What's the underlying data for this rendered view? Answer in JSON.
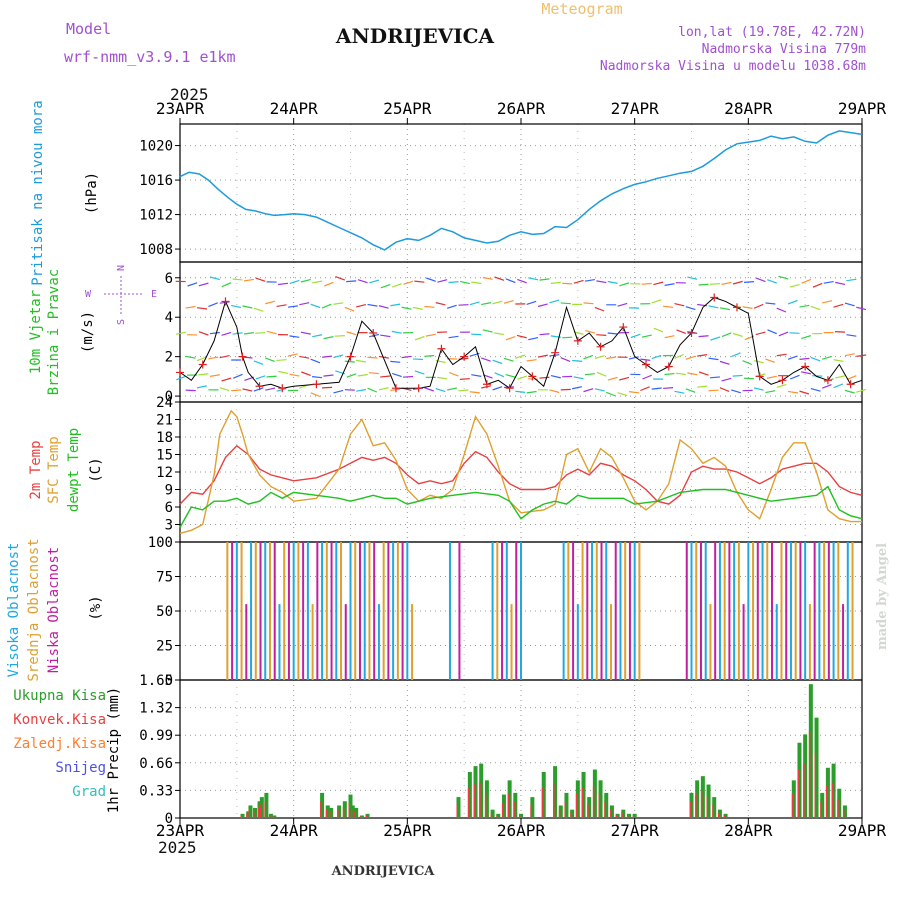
{
  "header": {
    "model_label": "Model",
    "model_name": "wrf-nmm_v3.9.1 e1km",
    "station": "ANDRIJEVICA",
    "chart_title": "Meteogram",
    "coords": "lon,lat (19.78E, 42.72N)",
    "elevation": "Nadmorska Visina 779m",
    "model_elevation": "Nadmorska Visina u modelu 1038.68m",
    "year": "2025",
    "footer": "ANDRIJEVICA",
    "watermark": "made by Angel"
  },
  "colors": {
    "pressure": "#1e9bdc",
    "wind_text": "#22c022",
    "temp2m": "#e84040",
    "sfc": "#e0a030",
    "dewpt": "#20c020",
    "cloud_high": "#20a8e0",
    "cloud_mid": "#e0a030",
    "cloud_low": "#c020a0",
    "accent_purple": "#a050d0",
    "precip_total": "#2a9d2a",
    "precip_conv": "#e84040",
    "precip_frozen": "#ff8030",
    "precip_snow": "#5050e0",
    "precip_graupel": "#30c0c0",
    "wind_marker": "#e02020"
  },
  "chart_data": {
    "type": "meteogram",
    "x_ticks": [
      "23APR",
      "24APR",
      "25APR",
      "26APR",
      "27APR",
      "28APR",
      "29APR"
    ],
    "panels": [
      {
        "id": "pressure",
        "type": "line",
        "ylabel_lines": [
          "Pritisak na nivou mora"
        ],
        "unit": "(hPa)",
        "ylim": [
          1006.5,
          1022.5
        ],
        "y_ticks": [
          1008,
          1012,
          1016,
          1020
        ],
        "series": [
          {
            "color_key": "pressure",
            "x": [
              0,
              0.08,
              0.17,
              0.25,
              0.33,
              0.42,
              0.5,
              0.58,
              0.67,
              0.75,
              0.83,
              0.92,
              1.0,
              1.1,
              1.2,
              1.3,
              1.4,
              1.5,
              1.6,
              1.7,
              1.8,
              1.9,
              2.0,
              2.1,
              2.2,
              2.3,
              2.4,
              2.5,
              2.6,
              2.7,
              2.8,
              2.9,
              3.0,
              3.1,
              3.2,
              3.3,
              3.4,
              3.5,
              3.6,
              3.7,
              3.8,
              3.9,
              4.0,
              4.1,
              4.2,
              4.3,
              4.4,
              4.5,
              4.6,
              4.7,
              4.8,
              4.9,
              5.0,
              5.1,
              5.2,
              5.3,
              5.4,
              5.5,
              5.6,
              5.7,
              5.8,
              5.9,
              6.0
            ],
            "values": [
              1016.4,
              1016.9,
              1016.7,
              1016.0,
              1015.0,
              1014.0,
              1013.2,
              1012.6,
              1012.4,
              1012.1,
              1011.9,
              1012.0,
              1012.1,
              1012.0,
              1011.7,
              1011.1,
              1010.5,
              1009.9,
              1009.3,
              1008.5,
              1007.9,
              1008.8,
              1009.2,
              1009.0,
              1009.6,
              1010.4,
              1010.0,
              1009.3,
              1009.0,
              1008.7,
              1008.9,
              1009.6,
              1010.0,
              1009.7,
              1009.8,
              1010.6,
              1010.5,
              1011.4,
              1012.6,
              1013.6,
              1014.4,
              1015.0,
              1015.5,
              1015.8,
              1016.2,
              1016.5,
              1016.8,
              1017.0,
              1017.6,
              1018.5,
              1019.5,
              1020.2,
              1020.4,
              1020.6,
              1021.1,
              1020.8,
              1021.0,
              1020.5,
              1020.3,
              1021.2,
              1021.7,
              1021.5,
              1021.3
            ]
          }
        ]
      },
      {
        "id": "wind",
        "type": "line",
        "ylabel_lines": [
          "10m Vjetar",
          "Brzina i Pravac"
        ],
        "unit": "(m/s)",
        "compass": [
          "N",
          "W",
          "E",
          "S"
        ],
        "ylim": [
          -0.3,
          6.8
        ],
        "y_ticks": [
          0,
          2,
          4,
          6
        ],
        "series": [
          {
            "color_key": "wind_speed",
            "x": [
              0,
              0.1,
              0.2,
              0.3,
              0.4,
              0.5,
              0.55,
              0.6,
              0.7,
              0.8,
              0.9,
              1.0,
              1.2,
              1.4,
              1.5,
              1.6,
              1.7,
              1.8,
              1.9,
              2.0,
              2.1,
              2.2,
              2.3,
              2.4,
              2.5,
              2.6,
              2.7,
              2.8,
              2.9,
              3.0,
              3.1,
              3.2,
              3.3,
              3.4,
              3.5,
              3.6,
              3.7,
              3.8,
              3.9,
              4.0,
              4.1,
              4.2,
              4.3,
              4.4,
              4.5,
              4.6,
              4.7,
              4.8,
              4.9,
              5.0,
              5.1,
              5.2,
              5.3,
              5.4,
              5.5,
              5.6,
              5.7,
              5.8,
              5.9,
              6.0
            ],
            "values": [
              1.2,
              0.8,
              1.6,
              2.8,
              4.8,
              3.5,
              2.0,
              1.2,
              0.5,
              0.6,
              0.4,
              0.5,
              0.6,
              0.7,
              2.0,
              3.8,
              3.2,
              1.8,
              0.4,
              0.4,
              0.4,
              0.5,
              2.4,
              1.6,
              2.0,
              2.5,
              0.6,
              0.8,
              0.4,
              1.5,
              1.0,
              0.5,
              2.2,
              4.5,
              2.8,
              3.2,
              2.5,
              2.8,
              3.5,
              2.0,
              1.6,
              1.2,
              1.5,
              2.6,
              3.2,
              4.5,
              5.0,
              4.8,
              4.5,
              4.2,
              1.0,
              0.6,
              0.8,
              1.2,
              1.5,
              1.0,
              0.8,
              1.6,
              0.6,
              0.8
            ]
          }
        ]
      },
      {
        "id": "temp",
        "type": "line",
        "ylabel_lines": [
          "2m Temp",
          "SFC Temp",
          "dewpt Temp"
        ],
        "unit": "(C)",
        "ylim": [
          0,
          24
        ],
        "y_ticks": [
          3,
          6,
          9,
          12,
          15,
          18,
          21,
          24
        ],
        "series": [
          {
            "name": "2m Temp",
            "color_key": "temp2m",
            "x": [
              0,
              0.1,
              0.2,
              0.3,
              0.4,
              0.5,
              0.6,
              0.7,
              0.8,
              0.9,
              1.0,
              1.2,
              1.4,
              1.5,
              1.6,
              1.7,
              1.8,
              1.9,
              2.0,
              2.1,
              2.2,
              2.3,
              2.4,
              2.5,
              2.6,
              2.7,
              2.8,
              2.9,
              3.0,
              3.2,
              3.3,
              3.4,
              3.5,
              3.6,
              3.7,
              3.8,
              3.9,
              4.0,
              4.1,
              4.2,
              4.3,
              4.4,
              4.5,
              4.6,
              4.7,
              4.8,
              4.9,
              5.0,
              5.1,
              5.2,
              5.3,
              5.4,
              5.5,
              5.6,
              5.7,
              5.8,
              5.9,
              6.0
            ],
            "values": [
              6.5,
              8.5,
              8.2,
              10.5,
              14.5,
              16.5,
              15.0,
              12.5,
              11.5,
              11.0,
              10.5,
              11.0,
              12.5,
              13.5,
              14.5,
              14.0,
              14.5,
              13.5,
              11.5,
              10.0,
              10.5,
              10.0,
              10.5,
              13.5,
              15.5,
              14.5,
              12.0,
              10.0,
              9.0,
              9.0,
              9.5,
              11.5,
              12.5,
              11.5,
              13.5,
              13.0,
              11.5,
              10.5,
              9.0,
              7.0,
              6.5,
              8.0,
              12.0,
              13.0,
              12.5,
              12.5,
              12.0,
              11.0,
              10.0,
              11.0,
              12.5,
              13.0,
              13.5,
              13.5,
              12.0,
              9.5,
              8.5,
              8.0
            ]
          },
          {
            "name": "SFC Temp",
            "color_key": "sfc",
            "x": [
              0,
              0.1,
              0.2,
              0.3,
              0.35,
              0.45,
              0.5,
              0.55,
              0.6,
              0.7,
              0.8,
              0.9,
              1.0,
              1.2,
              1.4,
              1.5,
              1.6,
              1.7,
              1.8,
              1.9,
              2.0,
              2.1,
              2.2,
              2.3,
              2.4,
              2.5,
              2.6,
              2.7,
              2.8,
              2.9,
              3.0,
              3.2,
              3.3,
              3.4,
              3.5,
              3.6,
              3.7,
              3.8,
              3.9,
              4.0,
              4.1,
              4.2,
              4.3,
              4.4,
              4.5,
              4.6,
              4.7,
              4.8,
              4.9,
              5.0,
              5.1,
              5.2,
              5.3,
              5.4,
              5.5,
              5.6,
              5.7,
              5.8,
              5.9,
              6.0
            ],
            "values": [
              1.5,
              2.0,
              3.0,
              11.5,
              18.5,
              22.5,
              21.5,
              18.5,
              15.0,
              11.5,
              9.5,
              8.5,
              7.0,
              7.5,
              12.5,
              18.5,
              21.0,
              16.5,
              17.0,
              14.0,
              9.0,
              7.0,
              8.0,
              7.5,
              9.0,
              15.0,
              21.5,
              18.5,
              13.0,
              7.0,
              5.0,
              5.5,
              6.5,
              15.0,
              16.0,
              12.0,
              16.0,
              14.5,
              11.0,
              7.0,
              5.5,
              7.0,
              10.0,
              17.5,
              16.0,
              13.5,
              14.5,
              13.0,
              8.5,
              5.5,
              4.0,
              9.0,
              14.5,
              17.0,
              17.0,
              12.0,
              5.5,
              4.0,
              3.5,
              3.5
            ]
          },
          {
            "name": "dewpt Temp",
            "color_key": "dewpt",
            "x": [
              0,
              0.1,
              0.2,
              0.3,
              0.4,
              0.5,
              0.6,
              0.7,
              0.8,
              0.9,
              1.0,
              1.2,
              1.4,
              1.5,
              1.6,
              1.7,
              1.8,
              1.9,
              2.0,
              2.2,
              2.4,
              2.6,
              2.8,
              2.9,
              3.0,
              3.1,
              3.2,
              3.3,
              3.4,
              3.5,
              3.6,
              3.7,
              3.8,
              3.9,
              4.0,
              4.2,
              4.4,
              4.6,
              4.8,
              5.0,
              5.2,
              5.4,
              5.6,
              5.7,
              5.8,
              5.9,
              6.0
            ],
            "values": [
              2.5,
              6.0,
              5.5,
              7.0,
              7.0,
              7.5,
              6.5,
              7.0,
              8.5,
              7.5,
              8.5,
              8.0,
              7.5,
              7.0,
              7.5,
              8.0,
              7.5,
              7.5,
              6.5,
              7.5,
              8.0,
              8.5,
              8.0,
              7.0,
              4.0,
              5.5,
              6.5,
              7.0,
              6.5,
              8.0,
              7.5,
              7.5,
              7.5,
              7.5,
              6.5,
              7.0,
              8.5,
              9.0,
              9.0,
              8.0,
              7.0,
              7.5,
              8.0,
              9.5,
              5.5,
              4.5,
              4.0
            ]
          }
        ]
      },
      {
        "id": "cloud",
        "type": "bar",
        "ylabel_lines": [
          "Visoka Oblacnost",
          "Srednja Oblacnost",
          "Niska Oblacnost"
        ],
        "unit": "(%)",
        "ylim": [
          0,
          100
        ],
        "y_ticks": [
          0,
          25,
          50,
          75,
          100
        ],
        "cloud_periods": [
          [
            0.38,
            2.05
          ],
          [
            2.35,
            2.38
          ],
          [
            2.42,
            2.46
          ],
          [
            2.73,
            3.02
          ],
          [
            3.35,
            4.05
          ],
          [
            4.45,
            5.95
          ]
        ]
      },
      {
        "id": "precip",
        "type": "bar",
        "ylabel_lines": [
          "1hr Precip (mm)"
        ],
        "unit": "(mm)",
        "ylim": [
          0,
          1.65
        ],
        "y_ticks": [
          0,
          0.33,
          0.66,
          0.99,
          1.32,
          1.65
        ],
        "legend": [
          "Ukupna Kisa",
          "Konvek.Kisa",
          "Zaledj.Kisa",
          "Snijeg",
          "Grad"
        ],
        "series": [
          {
            "name": "Ukupna Kisa",
            "color_key": "precip_total",
            "x": [
              0.55,
              0.6,
              0.62,
              0.66,
              0.7,
              0.72,
              0.76,
              0.8,
              0.83,
              1.25,
              1.3,
              1.33,
              1.4,
              1.45,
              1.5,
              1.52,
              1.55,
              1.6,
              1.65,
              2.45,
              2.55,
              2.6,
              2.65,
              2.7,
              2.75,
              2.8,
              2.85,
              2.9,
              2.95,
              3.0,
              3.1,
              3.2,
              3.3,
              3.35,
              3.4,
              3.45,
              3.5,
              3.55,
              3.6,
              3.65,
              3.7,
              3.75,
              3.8,
              3.85,
              3.9,
              3.95,
              4.0,
              4.5,
              4.55,
              4.6,
              4.65,
              4.7,
              4.75,
              4.8,
              5.4,
              5.45,
              5.5,
              5.55,
              5.6,
              5.65,
              5.7,
              5.75,
              5.8,
              5.85
            ],
            "values": [
              0.05,
              0.08,
              0.15,
              0.12,
              0.2,
              0.25,
              0.3,
              0.05,
              0.03,
              0.3,
              0.15,
              0.12,
              0.15,
              0.2,
              0.28,
              0.15,
              0.12,
              0.03,
              0.05,
              0.25,
              0.55,
              0.62,
              0.65,
              0.45,
              0.1,
              0.05,
              0.28,
              0.45,
              0.3,
              0.05,
              0.25,
              0.55,
              0.62,
              0.15,
              0.3,
              0.1,
              0.45,
              0.55,
              0.25,
              0.58,
              0.45,
              0.3,
              0.15,
              0.05,
              0.1,
              0.05,
              0.05,
              0.3,
              0.45,
              0.5,
              0.4,
              0.25,
              0.1,
              0.05,
              0.45,
              0.9,
              1.0,
              1.6,
              1.2,
              0.3,
              0.6,
              0.65,
              0.35,
              0.15
            ]
          }
        ]
      }
    ]
  }
}
